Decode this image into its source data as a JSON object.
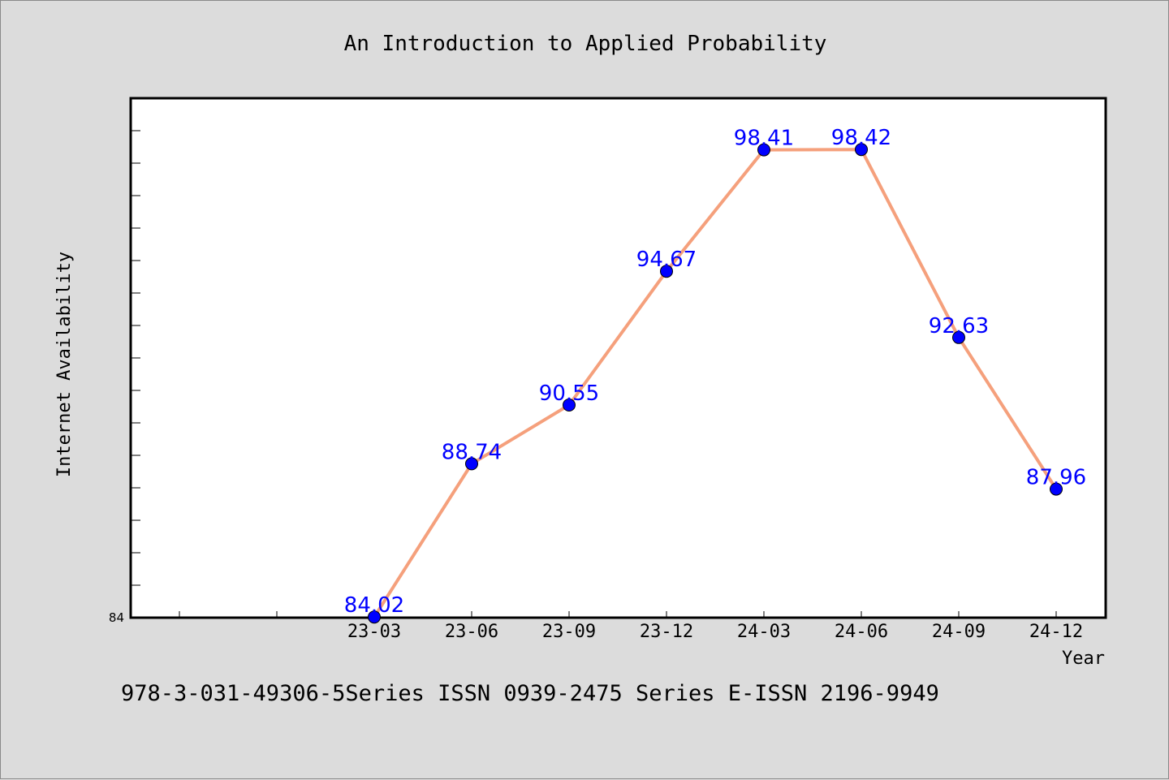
{
  "chart_data": {
    "type": "line",
    "title": "An Introduction to Applied Probability",
    "xlabel": "Year",
    "ylabel": "Internet Availability",
    "categories": [
      "23-03",
      "23-06",
      "23-09",
      "23-12",
      "24-03",
      "24-06",
      "24-09",
      "24-12"
    ],
    "series": [
      {
        "values": [
          84.02,
          88.74,
          90.55,
          94.67,
          98.41,
          98.42,
          92.63,
          87.96
        ]
      }
    ],
    "data_labels": [
      "84.02",
      "88.74",
      "90.55",
      "94.67",
      "98.41",
      "98.42",
      "92.63",
      "87.96"
    ],
    "ylim": [
      84,
      100
    ],
    "y_tick_labels": [
      "84"
    ],
    "grid": false,
    "line_color": "#f5a07c",
    "marker_color": "#0000ff",
    "label_color": "#0000ff"
  },
  "footer": "978-3-031-49306-5Series ISSN 0939-2475 Series E-ISSN 2196-9949"
}
